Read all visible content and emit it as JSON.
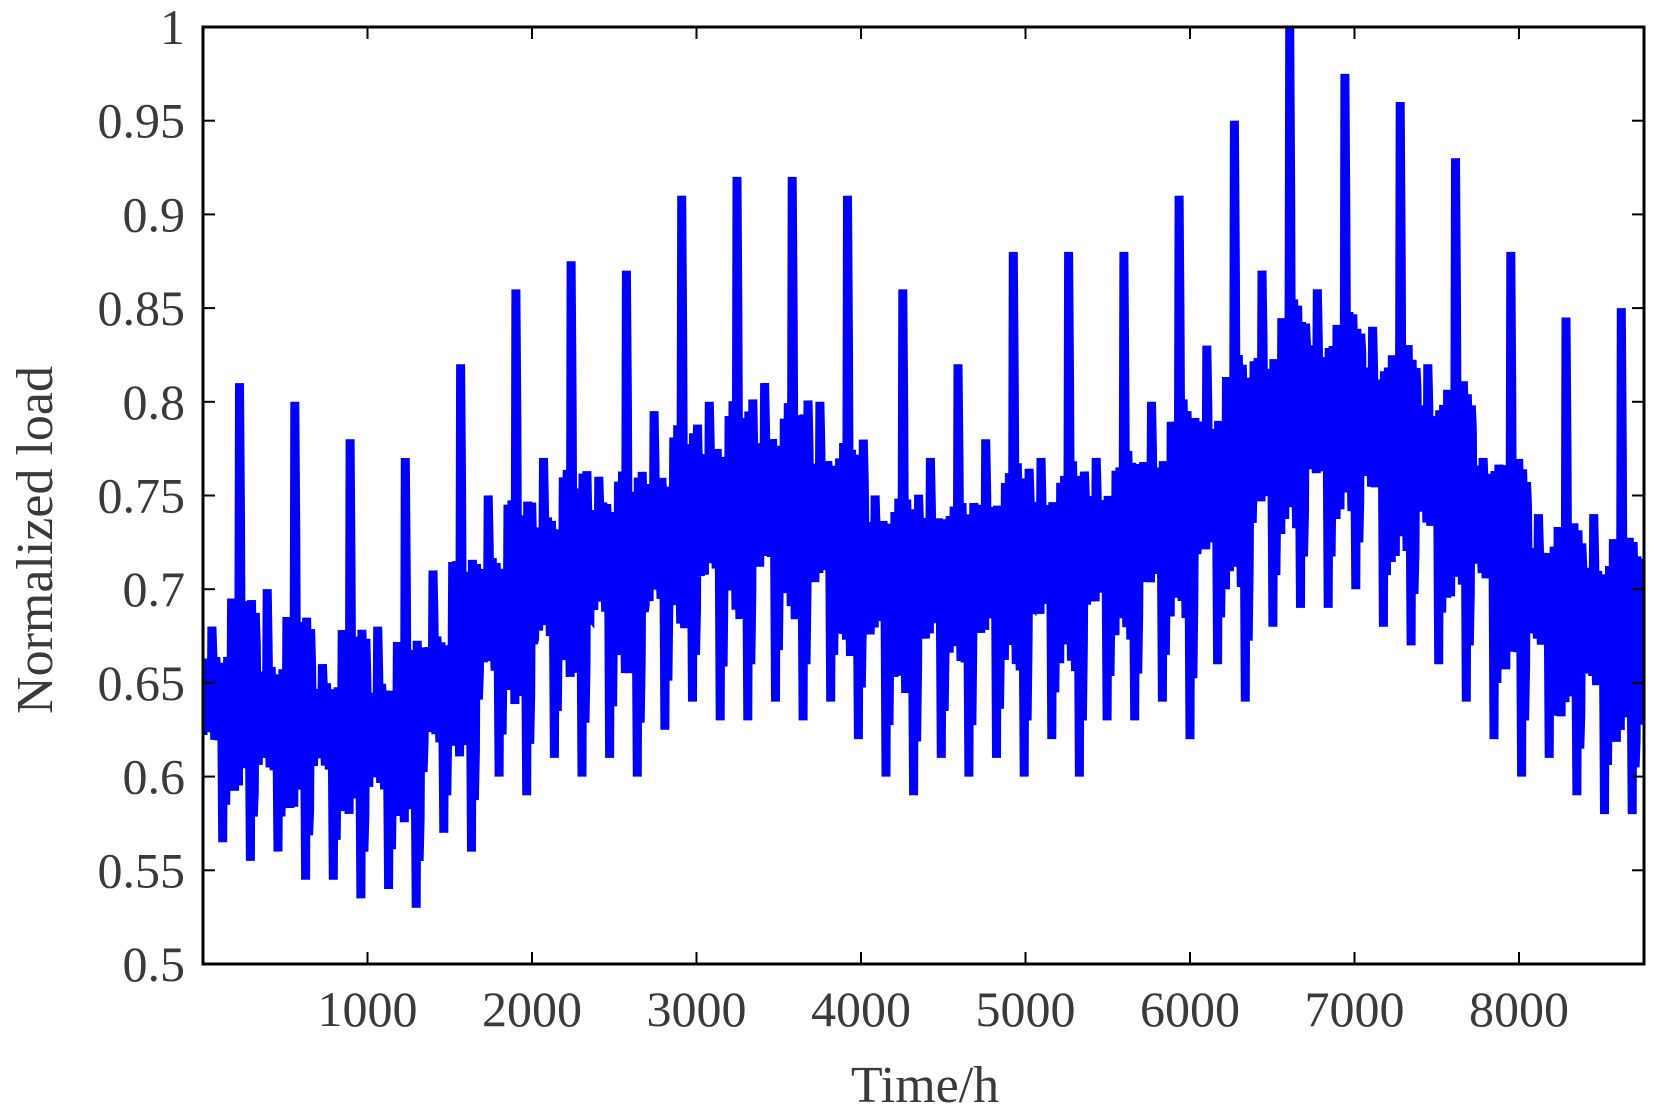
{
  "chart_data": {
    "type": "line",
    "title": "",
    "xlabel": "Time/h",
    "ylabel": "Normalized  load",
    "xlim": [
      0,
      8760
    ],
    "ylim": [
      0.5,
      1.0
    ],
    "xticks": [
      1000,
      2000,
      3000,
      4000,
      5000,
      6000,
      7000,
      8000
    ],
    "xtick_labels": [
      "1000",
      "2000",
      "3000",
      "4000",
      "5000",
      "6000",
      "7000",
      "8000"
    ],
    "yticks": [
      0.5,
      0.55,
      0.6,
      0.65,
      0.7,
      0.75,
      0.8,
      0.85,
      0.9,
      0.95,
      1.0
    ],
    "ytick_labels": [
      "0.5",
      "0.55",
      "0.6",
      "0.65",
      "0.7",
      "0.75",
      "0.8",
      "0.85",
      "0.9",
      "0.95",
      "1"
    ],
    "grid": false,
    "legend": "none",
    "line_color": "#0000ff",
    "weekly_envelope": {
      "week_start_hours": [
        0,
        168,
        336,
        504,
        672,
        840,
        1008,
        1176,
        1344,
        1512,
        1680,
        1848,
        2016,
        2184,
        2352,
        2520,
        2688,
        2856,
        3024,
        3192,
        3360,
        3528,
        3696,
        3864,
        4032,
        4200,
        4368,
        4536,
        4704,
        4872,
        5040,
        5208,
        5376,
        5544,
        5712,
        5880,
        6048,
        6216,
        6384,
        6552,
        6720,
        6888,
        7056,
        7224,
        7392,
        7560,
        7728,
        7896,
        8064,
        8232,
        8400,
        8568
      ],
      "peak": [
        0.68,
        0.81,
        0.7,
        0.8,
        0.66,
        0.78,
        0.68,
        0.77,
        0.71,
        0.82,
        0.75,
        0.86,
        0.77,
        0.875,
        0.76,
        0.87,
        0.795,
        0.91,
        0.8,
        0.92,
        0.81,
        0.92,
        0.8,
        0.91,
        0.75,
        0.86,
        0.77,
        0.82,
        0.78,
        0.88,
        0.77,
        0.88,
        0.77,
        0.88,
        0.8,
        0.91,
        0.83,
        0.95,
        0.87,
        1.0,
        0.86,
        0.975,
        0.84,
        0.96,
        0.82,
        0.93,
        0.77,
        0.88,
        0.74,
        0.845,
        0.74,
        0.85
      ],
      "trough": [
        0.565,
        0.555,
        0.56,
        0.545,
        0.545,
        0.535,
        0.54,
        0.53,
        0.57,
        0.56,
        0.6,
        0.59,
        0.61,
        0.6,
        0.61,
        0.6,
        0.625,
        0.64,
        0.63,
        0.63,
        0.64,
        0.63,
        0.64,
        0.62,
        0.6,
        0.59,
        0.61,
        0.6,
        0.61,
        0.6,
        0.62,
        0.6,
        0.63,
        0.63,
        0.64,
        0.62,
        0.66,
        0.64,
        0.68,
        0.69,
        0.69,
        0.7,
        0.68,
        0.67,
        0.66,
        0.64,
        0.62,
        0.6,
        0.61,
        0.59,
        0.58,
        0.58
      ],
      "mid": [
        0.645,
        0.65,
        0.635,
        0.64,
        0.63,
        0.635,
        0.625,
        0.63,
        0.65,
        0.67,
        0.69,
        0.7,
        0.71,
        0.715,
        0.72,
        0.715,
        0.73,
        0.74,
        0.745,
        0.75,
        0.75,
        0.75,
        0.74,
        0.73,
        0.71,
        0.705,
        0.71,
        0.71,
        0.715,
        0.72,
        0.72,
        0.72,
        0.725,
        0.73,
        0.74,
        0.75,
        0.76,
        0.77,
        0.79,
        0.8,
        0.8,
        0.8,
        0.79,
        0.78,
        0.77,
        0.76,
        0.74,
        0.72,
        0.7,
        0.69,
        0.685,
        0.68
      ]
    }
  }
}
